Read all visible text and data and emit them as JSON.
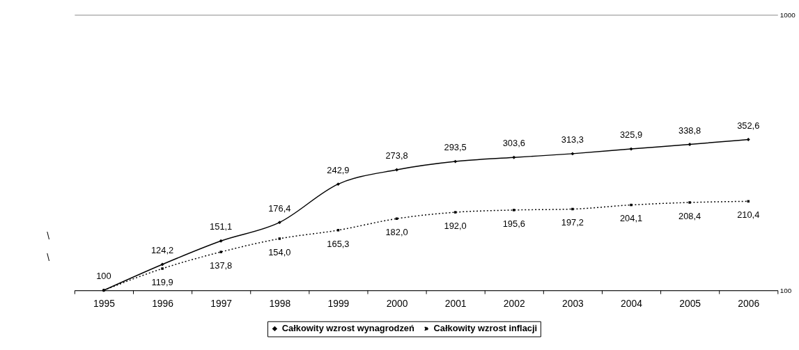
{
  "chart_data": {
    "type": "line",
    "categories": [
      "1995",
      "1996",
      "1997",
      "1998",
      "1999",
      "2000",
      "2001",
      "2002",
      "2003",
      "2004",
      "2005",
      "2006"
    ],
    "series": [
      {
        "name": "Całkowity wzrost wynagrodzeń",
        "color": "#000000",
        "marker": "diamond",
        "line_style": "solid",
        "values": [
          100,
          124.2,
          151.1,
          176.4,
          242.9,
          273.8,
          293.5,
          303.6,
          313.3,
          325.9,
          338.8,
          352.6
        ],
        "value_labels": [
          "100",
          "124,2",
          "151,1",
          "176,4",
          "242,9",
          "273,8",
          "293,5",
          "303,6",
          "313,3",
          "325,9",
          "338,8",
          "352,6"
        ]
      },
      {
        "name": "Całkowity wzrost inflacji",
        "color": "#000000",
        "marker": "square",
        "line_style": "dotted",
        "values": [
          100,
          119.9,
          137.8,
          154.0,
          165.3,
          182.0,
          192.0,
          195.6,
          197.2,
          204.1,
          208.4,
          210.4
        ],
        "value_labels": [
          null,
          "119,9",
          "137,8",
          "154,0",
          "165,3",
          "182,0",
          "192,0",
          "195,6",
          "197,2",
          "204,1",
          "208,4",
          "210,4"
        ]
      }
    ],
    "log": "y",
    "ylim": [
      100,
      1000
    ],
    "yticks": [
      100,
      1000
    ],
    "grid": "y",
    "legend": "bottom",
    "annotations": [
      "\\",
      "\\"
    ]
  }
}
